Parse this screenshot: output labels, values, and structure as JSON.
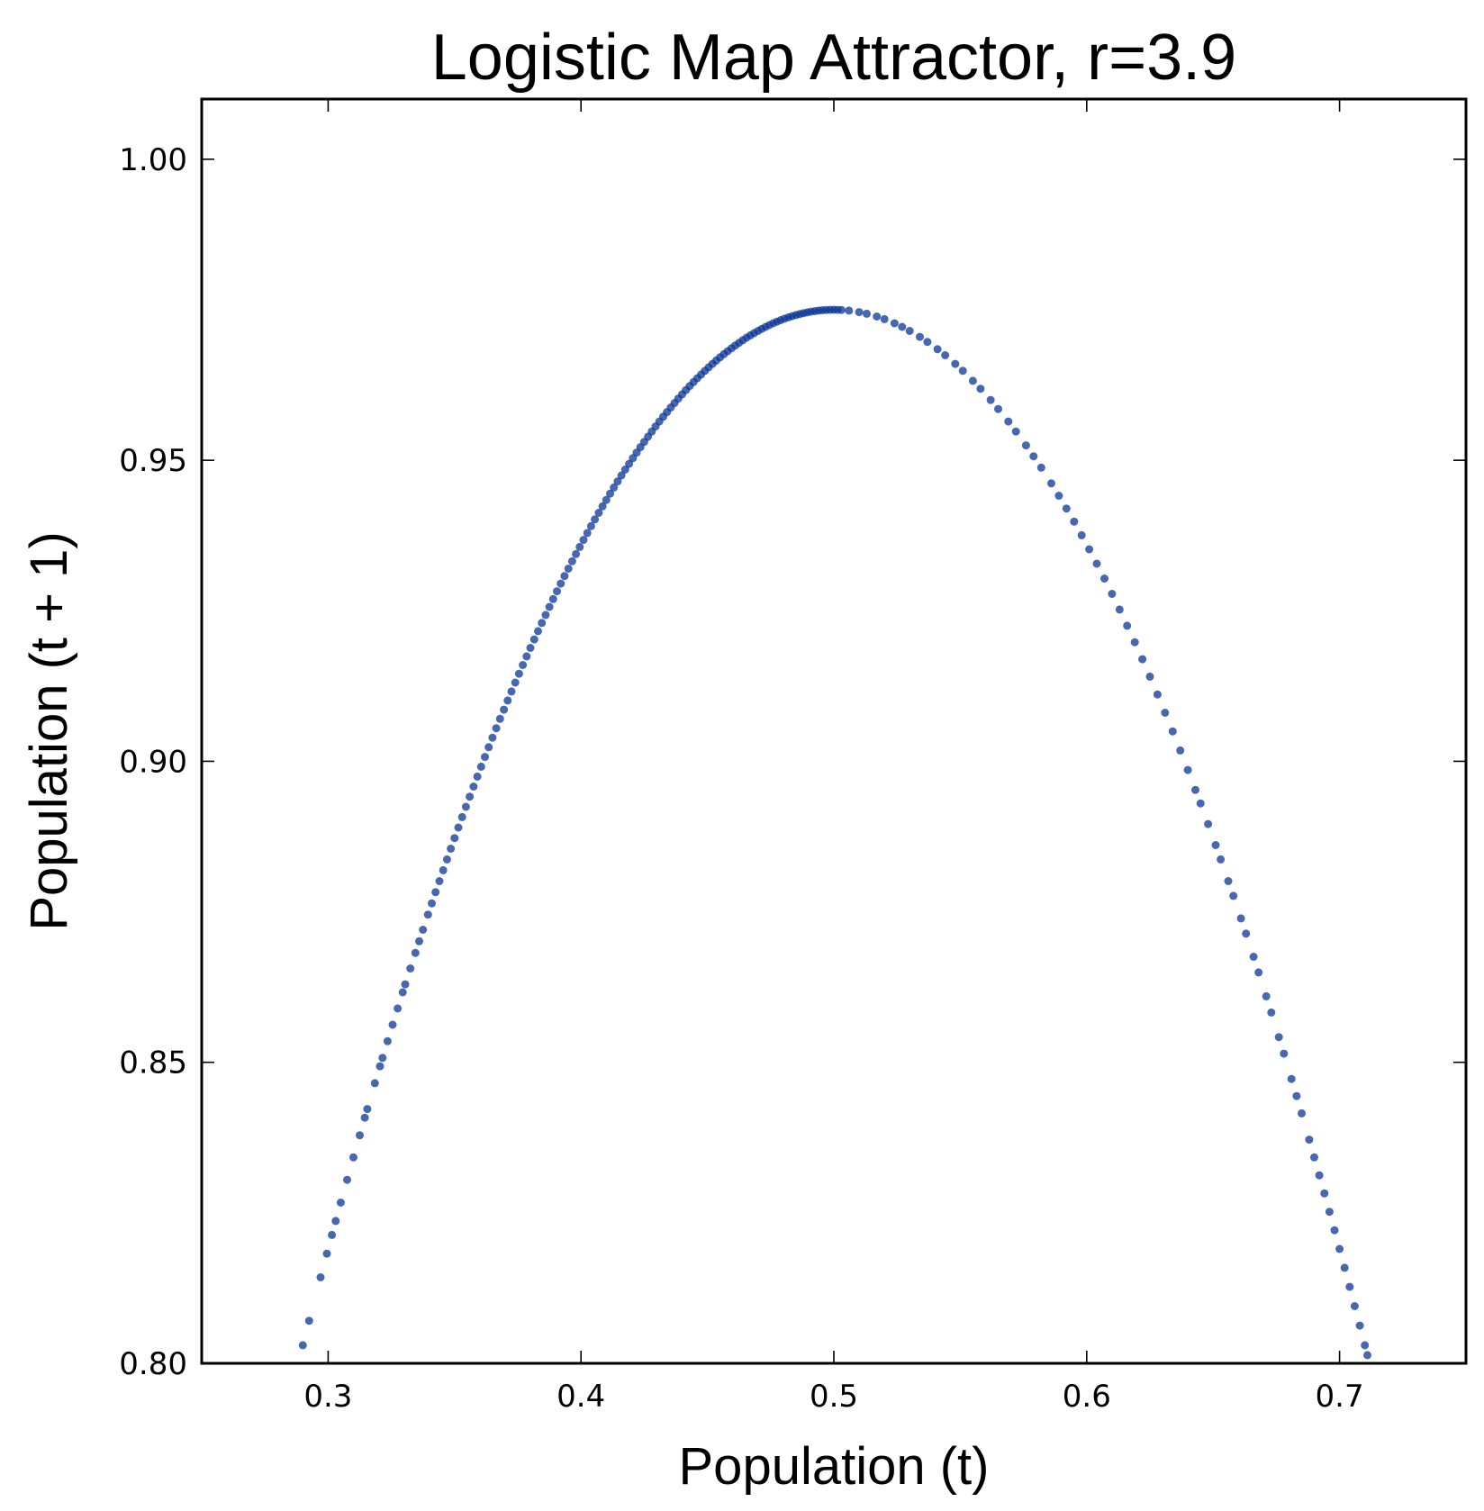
{
  "chart_data": {
    "type": "scatter",
    "title": "Logistic Map Attractor, r=3.9",
    "xlabel": "Population (t)",
    "ylabel": "Population (t + 1)",
    "xlim": [
      0.25,
      0.75
    ],
    "ylim": [
      0.8,
      1.01
    ],
    "xticks": [
      "0.3",
      "0.4",
      "0.5",
      "0.6",
      "0.7"
    ],
    "yticks": [
      "0.80",
      "0.85",
      "0.90",
      "0.95",
      "1.00"
    ],
    "xtick_values": [
      0.3,
      0.4,
      0.5,
      0.6,
      0.7
    ],
    "ytick_values": [
      0.8,
      0.85,
      0.9,
      0.95,
      1.0
    ],
    "grid": false,
    "marker_color": "#0a3697",
    "marker_opacity": 0.75,
    "series": [
      {
        "x": [
          0.29,
          0.2925,
          0.297,
          0.2995,
          0.3015,
          0.303,
          0.305,
          0.3075,
          0.31,
          0.3125,
          0.3145,
          0.3155,
          0.3185,
          0.3205,
          0.3215,
          0.3235,
          0.3255,
          0.3275,
          0.3295,
          0.3305,
          0.3325,
          0.3345,
          0.336,
          0.3375,
          0.3395,
          0.341,
          0.3425,
          0.344,
          0.3455,
          0.347,
          0.3485,
          0.35,
          0.3515,
          0.353,
          0.3545,
          0.356,
          0.3575,
          0.359,
          0.3605,
          0.362,
          0.3635,
          0.365,
          0.3665,
          0.368,
          0.3695,
          0.371,
          0.3725,
          0.374,
          0.3755,
          0.377,
          0.3785,
          0.38,
          0.3815,
          0.383,
          0.3845,
          0.386,
          0.3875,
          0.389,
          0.3905,
          0.392,
          0.3935,
          0.395,
          0.3965,
          0.398,
          0.3995,
          0.401,
          0.4025,
          0.404,
          0.4055,
          0.407,
          0.4085,
          0.41,
          0.4115,
          0.413,
          0.4145,
          0.416,
          0.4175,
          0.419,
          0.4205,
          0.422,
          0.4235,
          0.425,
          0.4265,
          0.428,
          0.4295,
          0.431,
          0.4325,
          0.434,
          0.4355,
          0.437,
          0.4385,
          0.44,
          0.4415,
          0.443,
          0.4445,
          0.446,
          0.4475,
          0.449,
          0.4505,
          0.452,
          0.4535,
          0.455,
          0.4565,
          0.458,
          0.4595,
          0.461,
          0.4625,
          0.464,
          0.4655,
          0.467,
          0.4685,
          0.47,
          0.4715,
          0.473,
          0.4745,
          0.476,
          0.4775,
          0.479,
          0.4805,
          0.482,
          0.4835,
          0.485,
          0.4865,
          0.488,
          0.4895,
          0.491,
          0.4925,
          0.494,
          0.4955,
          0.497,
          0.4985,
          0.5,
          0.5015,
          0.503,
          0.506,
          0.51,
          0.513,
          0.517,
          0.52,
          0.524,
          0.527,
          0.53,
          0.534,
          0.537,
          0.541,
          0.544,
          0.548,
          0.551,
          0.555,
          0.558,
          0.562,
          0.565,
          0.569,
          0.572,
          0.576,
          0.579,
          0.582,
          0.586,
          0.589,
          0.592,
          0.595,
          0.598,
          0.601,
          0.604,
          0.607,
          0.61,
          0.613,
          0.616,
          0.619,
          0.622,
          0.625,
          0.628,
          0.631,
          0.634,
          0.637,
          0.64,
          0.643,
          0.645,
          0.648,
          0.651,
          0.653,
          0.656,
          0.658,
          0.661,
          0.663,
          0.666,
          0.668,
          0.671,
          0.673,
          0.676,
          0.678,
          0.681,
          0.683,
          0.685,
          0.688,
          0.69,
          0.692,
          0.694,
          0.696,
          0.698,
          0.7,
          0.702,
          0.704,
          0.706,
          0.708,
          0.71,
          0.711,
          0.712
        ]
      }
    ]
  }
}
